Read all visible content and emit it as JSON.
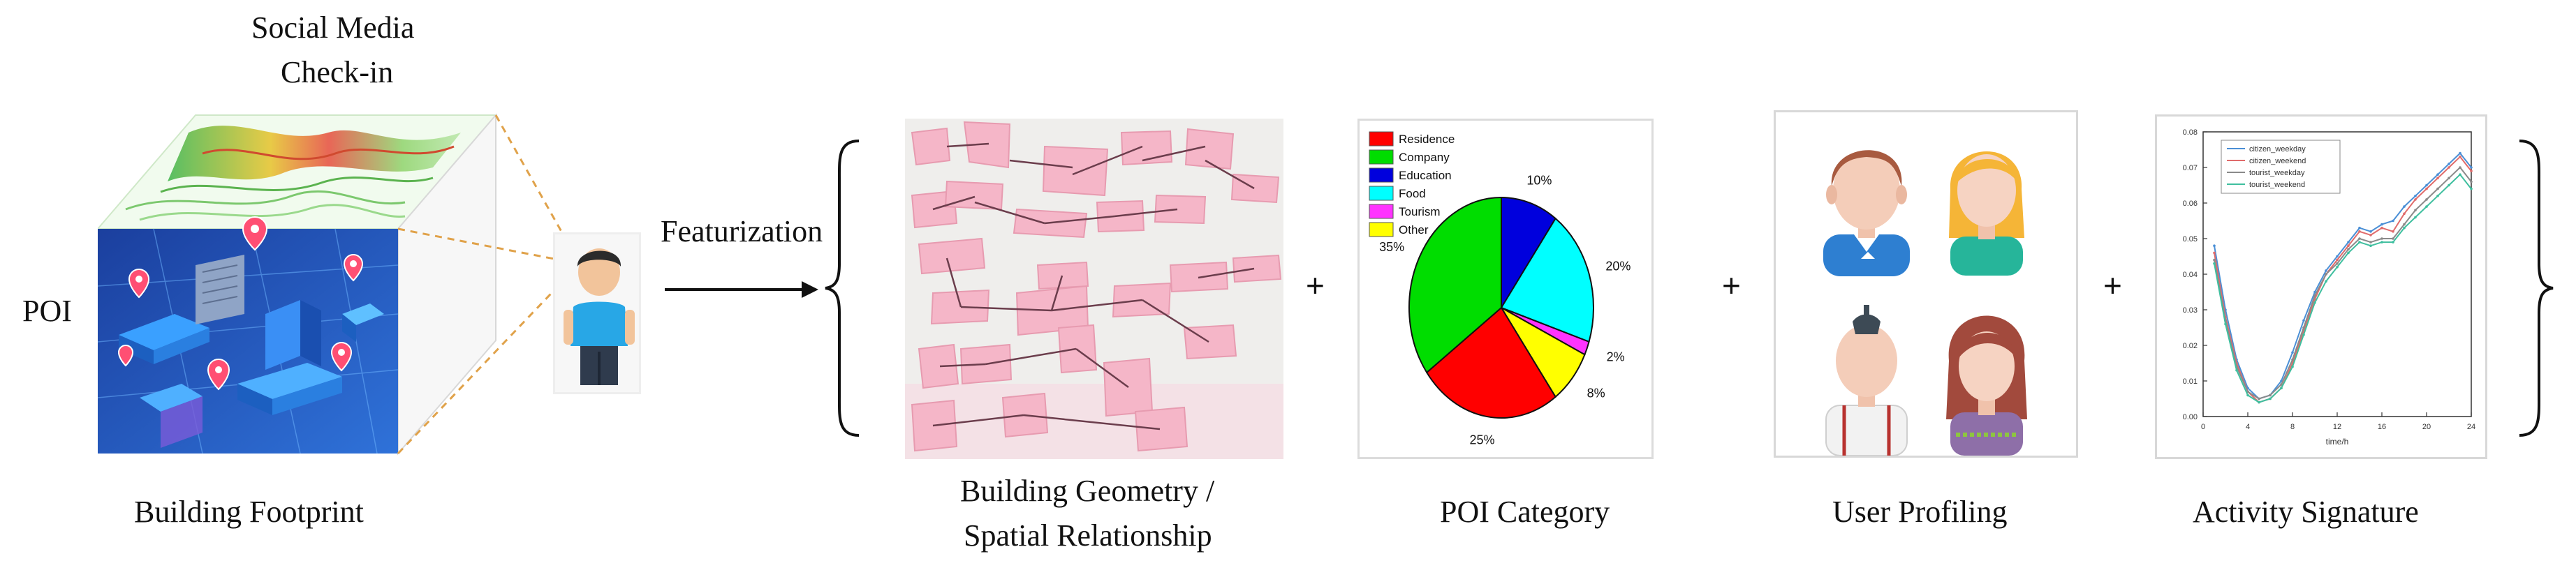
{
  "labels": {
    "social_media_line1": "Social Media",
    "social_media_line2": "Check-in",
    "poi": "POI",
    "building_footprint": "Building Footprint",
    "featurization": "Featurization",
    "building_geometry_line1": "Building Geometry /",
    "building_geometry_line2": "Spatial Relationship",
    "poi_category": "POI Category",
    "user_profiling": "User Profiling",
    "activity_signature": "Activity Signature",
    "plus": "+"
  },
  "chart_data": [
    {
      "type": "pie",
      "categories": [
        "Residence",
        "Company",
        "Education",
        "Food",
        "Tourism",
        "Other"
      ],
      "values": [
        25,
        35,
        10,
        20,
        2,
        8
      ],
      "colors": [
        "#ff0000",
        "#00dd00",
        "#0000dd",
        "#00ffff",
        "#ff33ff",
        "#ffff00"
      ],
      "slice_labels": [
        "25%",
        "35%",
        "10%",
        "20%",
        "2%",
        "8%"
      ],
      "legend": "top-left"
    },
    {
      "type": "line",
      "xlabel": "time/h",
      "x_ticks": [
        "0",
        "4",
        "8",
        "12",
        "16",
        "20",
        "24"
      ],
      "y_ticks": [
        "0.00",
        "0.01",
        "0.02",
        "0.03",
        "0.04",
        "0.05",
        "0.06",
        "0.07",
        "0.08"
      ],
      "xlim": [
        0,
        24
      ],
      "ylim": [
        0,
        0.08
      ],
      "legend": "top-left",
      "x": [
        1,
        2,
        3,
        4,
        5,
        6,
        7,
        8,
        9,
        10,
        11,
        12,
        13,
        14,
        15,
        16,
        17,
        18,
        19,
        20,
        21,
        22,
        23,
        24
      ],
      "series": [
        {
          "name": "citizen_weekday",
          "color": "#4a8fd6",
          "values": [
            0.048,
            0.03,
            0.016,
            0.008,
            0.005,
            0.006,
            0.01,
            0.018,
            0.027,
            0.035,
            0.041,
            0.045,
            0.049,
            0.053,
            0.052,
            0.054,
            0.055,
            0.059,
            0.062,
            0.065,
            0.068,
            0.071,
            0.074,
            0.07
          ]
        },
        {
          "name": "citizen_weekend",
          "color": "#e06b6b",
          "values": [
            0.046,
            0.028,
            0.015,
            0.007,
            0.004,
            0.005,
            0.008,
            0.015,
            0.024,
            0.033,
            0.04,
            0.044,
            0.048,
            0.052,
            0.051,
            0.053,
            0.052,
            0.057,
            0.061,
            0.064,
            0.067,
            0.07,
            0.073,
            0.069
          ]
        },
        {
          "name": "tourist_weekday",
          "color": "#8a8a8a",
          "values": [
            0.044,
            0.027,
            0.014,
            0.007,
            0.005,
            0.006,
            0.009,
            0.016,
            0.025,
            0.034,
            0.04,
            0.043,
            0.047,
            0.05,
            0.049,
            0.05,
            0.05,
            0.054,
            0.058,
            0.061,
            0.064,
            0.067,
            0.07,
            0.066
          ]
        },
        {
          "name": "tourist_weekend",
          "color": "#3fbf9f",
          "values": [
            0.043,
            0.026,
            0.013,
            0.006,
            0.004,
            0.005,
            0.008,
            0.014,
            0.023,
            0.032,
            0.038,
            0.042,
            0.046,
            0.049,
            0.048,
            0.049,
            0.049,
            0.053,
            0.056,
            0.059,
            0.062,
            0.065,
            0.068,
            0.064
          ]
        }
      ]
    }
  ]
}
